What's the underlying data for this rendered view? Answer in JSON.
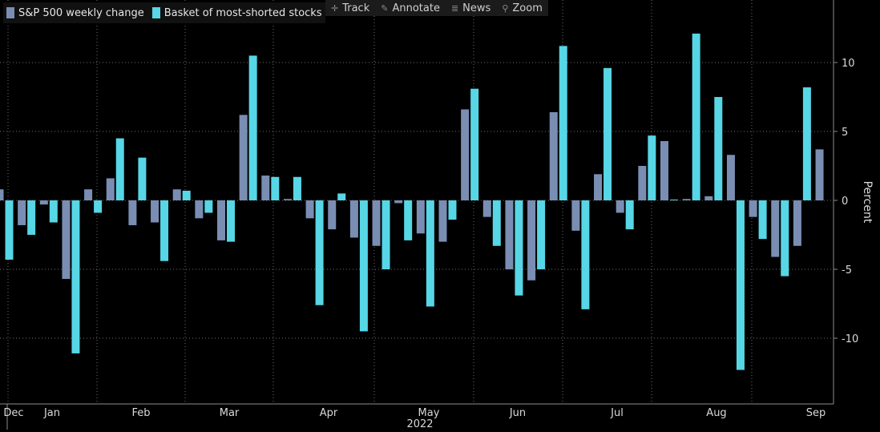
{
  "toolbar": {
    "track": "Track",
    "annotate": "Annotate",
    "news": "News",
    "zoom": "Zoom"
  },
  "colors": {
    "sp500": "#7a8eb3",
    "basket": "#57d6e6",
    "background": "#000000",
    "grid": "#6e6e6e",
    "axis": "#8c8c8c"
  },
  "chart_data": {
    "type": "bar",
    "title": "",
    "ylabel": "Percent",
    "xlabel": "2022",
    "ylim": [
      -14.5,
      14.5
    ],
    "yticks": [
      -10,
      -5,
      0,
      5,
      10
    ],
    "ytick_labels": [
      "-10",
      "-5",
      "0",
      "5",
      "10"
    ],
    "grid": true,
    "legend_position": "top-left",
    "month_labels": [
      "Dec",
      "Jan",
      "Feb",
      "Mar",
      "Apr",
      "May",
      "Jun",
      "Jul",
      "Aug",
      "Sep"
    ],
    "year_label": "2022",
    "series": [
      {
        "name": "S&P 500 weekly change",
        "key": "sp500",
        "values": [
          0.8,
          -1.8,
          -0.3,
          -5.7,
          0.8,
          1.6,
          -1.8,
          -1.6,
          0.8,
          -1.3,
          -2.9,
          6.2,
          1.8,
          0.1,
          -1.3,
          -2.1,
          -2.7,
          -3.3,
          -0.2,
          -2.4,
          -3.0,
          6.6,
          -1.2,
          -5.0,
          -5.8,
          6.4,
          -2.2,
          1.9,
          -0.9,
          2.5,
          4.3,
          0.1,
          0.3,
          3.3,
          -1.2,
          -4.1,
          -3.3,
          3.7
        ]
      },
      {
        "name": "Basket of most-shorted stocks",
        "key": "basket",
        "values": [
          -4.3,
          -2.5,
          -1.6,
          -11.1,
          -0.9,
          4.5,
          3.1,
          -4.4,
          0.7,
          -0.9,
          -3.0,
          10.5,
          1.7,
          1.7,
          -7.6,
          0.5,
          -9.5,
          -5.0,
          -2.9,
          -7.7,
          -1.4,
          8.1,
          -3.3,
          -6.9,
          -5.0,
          11.2,
          -7.9,
          9.6,
          -2.1,
          4.7,
          0.0,
          12.1,
          7.5,
          -12.3,
          -2.8,
          -5.5,
          8.2,
          null
        ]
      }
    ]
  }
}
